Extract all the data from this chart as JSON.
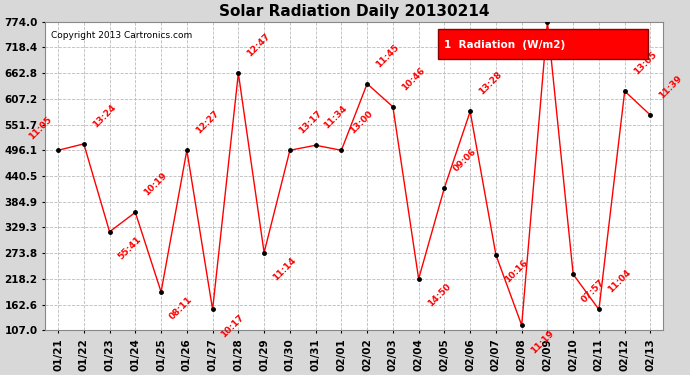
{
  "title": "Solar Radiation Daily 20130214",
  "copyright": "Copyright 2013 Cartronics.com",
  "legend_text": "1  Radiation  (W/m2)",
  "background_color": "#d8d8d8",
  "plot_background": "#ffffff",
  "grid_color": "#aaaaaa",
  "line_color": "red",
  "marker_color": "black",
  "ylim": [
    107.0,
    774.0
  ],
  "yticks": [
    107.0,
    162.6,
    218.2,
    273.8,
    329.3,
    384.9,
    440.5,
    496.1,
    551.7,
    607.2,
    662.8,
    718.4,
    774.0
  ],
  "dates": [
    "01/21",
    "01/22",
    "01/23",
    "01/24",
    "01/25",
    "01/26",
    "01/27",
    "01/28",
    "01/29",
    "01/30",
    "01/31",
    "02/01",
    "02/02",
    "02/03",
    "02/04",
    "02/05",
    "02/06",
    "02/07",
    "02/08",
    "02/09",
    "02/10",
    "02/11",
    "02/12",
    "02/13"
  ],
  "yvals": [
    496.1,
    510.0,
    320.0,
    362.0,
    190.0,
    496.1,
    152.0,
    662.8,
    275.0,
    496.1,
    507.0,
    496.1,
    640.0,
    590.0,
    218.2,
    415.0,
    580.0,
    270.0,
    118.0,
    774.0,
    228.0,
    152.0,
    624.0,
    572.0
  ],
  "point_labels": [
    {
      "idx": 0,
      "label": "11:05",
      "side": "left"
    },
    {
      "idx": 1,
      "label": "13:24",
      "side": "above"
    },
    {
      "idx": 2,
      "label": "55:41",
      "side": "below"
    },
    {
      "idx": 3,
      "label": "10:19",
      "side": "above"
    },
    {
      "idx": 4,
      "label": "08:11",
      "side": "below"
    },
    {
      "idx": 5,
      "label": "12:27",
      "side": "above"
    },
    {
      "idx": 6,
      "label": "10:17",
      "side": "below"
    },
    {
      "idx": 7,
      "label": "12:47",
      "side": "above"
    },
    {
      "idx": 8,
      "label": "11:14",
      "side": "below"
    },
    {
      "idx": 9,
      "label": "13:17",
      "side": "above"
    },
    {
      "idx": 10,
      "label": "11:34",
      "side": "above"
    },
    {
      "idx": 11,
      "label": "13:00",
      "side": "above"
    },
    {
      "idx": 12,
      "label": "11:45",
      "side": "above"
    },
    {
      "idx": 13,
      "label": "10:46",
      "side": "above"
    },
    {
      "idx": 14,
      "label": "14:50",
      "side": "below"
    },
    {
      "idx": 15,
      "label": "09:06",
      "side": "above"
    },
    {
      "idx": 16,
      "label": "13:28",
      "side": "above"
    },
    {
      "idx": 17,
      "label": "10:16",
      "side": "below"
    },
    {
      "idx": 18,
      "label": "11:19",
      "side": "below"
    },
    {
      "idx": 20,
      "label": "07:57",
      "side": "below"
    },
    {
      "idx": 21,
      "label": "11:04",
      "side": "above"
    },
    {
      "idx": 22,
      "label": "13:05",
      "side": "above"
    },
    {
      "idx": 23,
      "label": "11:39",
      "side": "above"
    }
  ]
}
